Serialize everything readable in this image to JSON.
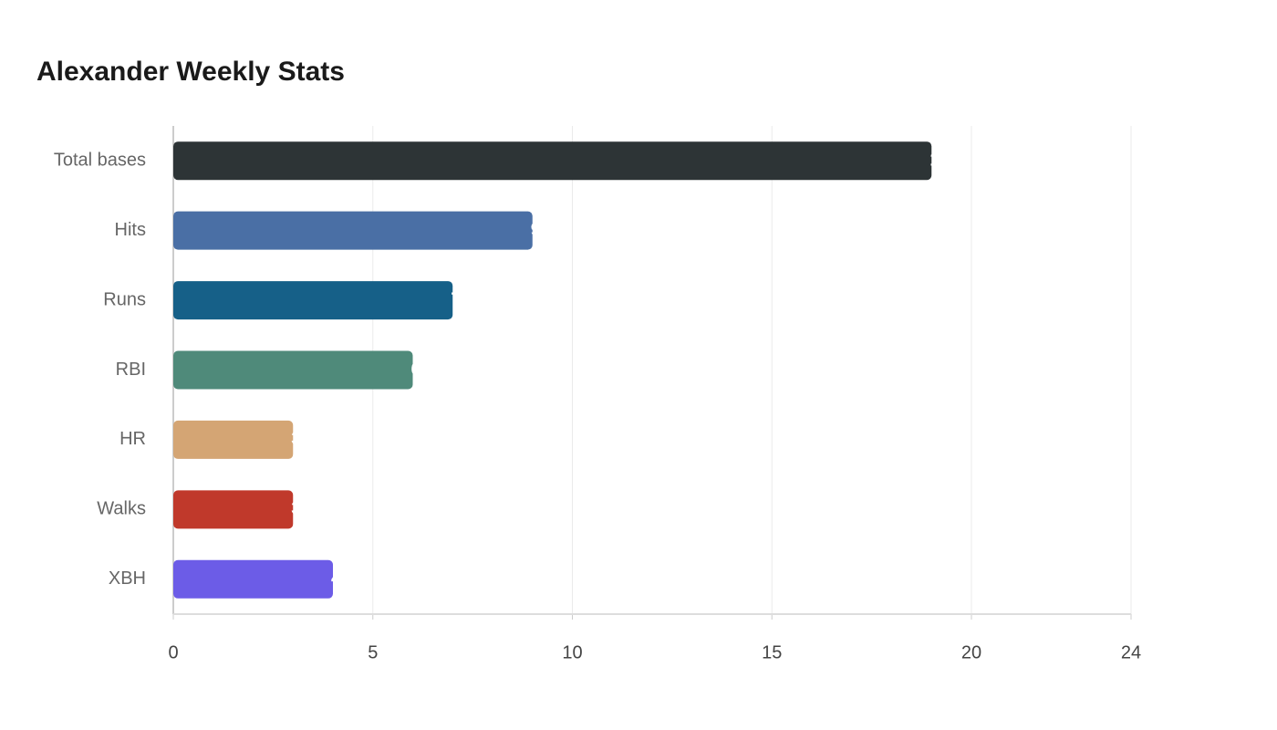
{
  "chart_data": {
    "type": "hbar",
    "title": "Alexander Weekly Stats",
    "categories": [
      "Total bases",
      "Hits",
      "Runs",
      "RBI",
      "HR",
      "Walks",
      "XBH"
    ],
    "values": [
      19,
      9,
      7,
      6,
      3,
      3,
      4
    ],
    "colors": [
      "#2d3436",
      "#4a6fa5",
      "#166088",
      "#4f8a7a",
      "#d4a574",
      "#c0392b",
      "#6c5ce7"
    ],
    "xlim": [
      0,
      24
    ],
    "xticks": [
      0,
      5,
      10,
      15,
      20,
      24
    ],
    "grid": true
  }
}
